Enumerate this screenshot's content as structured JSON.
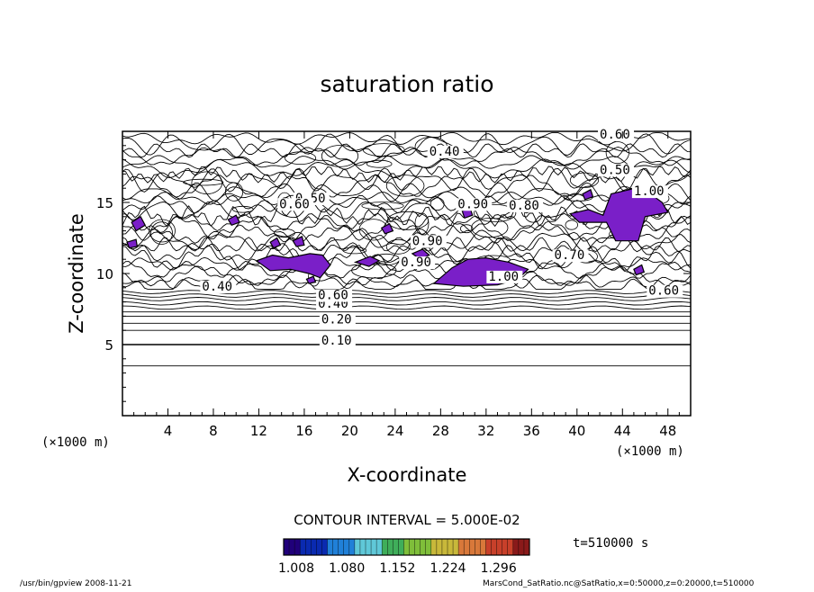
{
  "chart_data": {
    "type": "contour",
    "title": "saturation ratio",
    "xlabel": "X-coordinate",
    "ylabel": "Z-coordinate",
    "x_unit_left": "(×1000 m)",
    "x_unit_right": "(×1000 m)",
    "xlim": [
      0,
      50
    ],
    "ylim": [
      0,
      20
    ],
    "xticks": [
      "4",
      "8",
      "12",
      "16",
      "20",
      "24",
      "28",
      "32",
      "36",
      "40",
      "44",
      "48"
    ],
    "xtick_values": [
      4,
      8,
      12,
      16,
      20,
      24,
      28,
      32,
      36,
      40,
      44,
      48
    ],
    "yticks": [
      "5",
      "10",
      "15"
    ],
    "ytick_values": [
      5,
      10,
      15
    ],
    "contour_labels": [
      {
        "text": "0.10",
        "x": 17.5,
        "z": 5.0
      },
      {
        "text": "0.20",
        "x": 17.5,
        "z": 6.5
      },
      {
        "text": "0.40",
        "x": 17.2,
        "z": 7.6
      },
      {
        "text": "0.60",
        "x": 17.2,
        "z": 8.2
      },
      {
        "text": "0.40",
        "x": 27.0,
        "z": 18.3
      },
      {
        "text": "0.50",
        "x": 15.2,
        "z": 15.0
      },
      {
        "text": "0.60",
        "x": 13.8,
        "z": 14.6
      },
      {
        "text": "0.90",
        "x": 29.5,
        "z": 14.6
      },
      {
        "text": "0.80",
        "x": 34.0,
        "z": 14.5
      },
      {
        "text": "0.90",
        "x": 25.5,
        "z": 12.0
      },
      {
        "text": "0.90",
        "x": 24.5,
        "z": 10.5
      },
      {
        "text": "1.00",
        "x": 32.2,
        "z": 9.5
      },
      {
        "text": "0.70",
        "x": 38.0,
        "z": 11.0
      },
      {
        "text": "0.60",
        "x": 42.0,
        "z": 19.5
      },
      {
        "text": "0.50",
        "x": 42.0,
        "z": 17.0
      },
      {
        "text": "1.00",
        "x": 45.0,
        "z": 15.5
      },
      {
        "text": "0.40",
        "x": 7.0,
        "z": 8.8
      },
      {
        "text": "0.60",
        "x": 46.3,
        "z": 8.5
      }
    ],
    "shaded_regions_above": 1.0,
    "shade_color": "#7a1fc8",
    "contour_interval_text": "CONTOUR INTERVAL = 5.000E-02",
    "colorbar": {
      "ticks": [
        "1.008",
        "1.080",
        "1.152",
        "1.224",
        "1.296"
      ],
      "tick_values": [
        1.008,
        1.08,
        1.152,
        1.224,
        1.296
      ],
      "colors": [
        "#20007a",
        "#0a2ab0",
        "#2080d8",
        "#5fc8d8",
        "#3fae5a",
        "#7fbe3a",
        "#c8b83a",
        "#d8783a",
        "#c8402a",
        "#8a1a1a"
      ]
    },
    "time_label": "t=510000 s"
  },
  "footer": {
    "left": "/usr/bin/gpview  2008-11-21",
    "right": "MarsCond_SatRatio.nc@SatRatio,x=0:50000,z=0:20000,t=510000"
  }
}
